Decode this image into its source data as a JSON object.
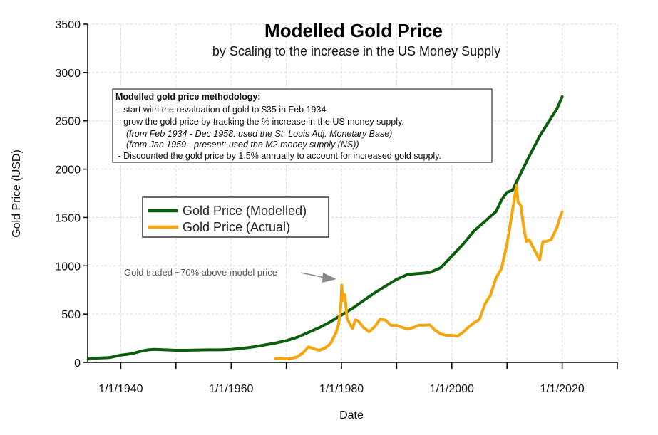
{
  "chart_data": {
    "type": "line",
    "title": "Modelled Gold Price",
    "subtitle": "by Scaling to the increase in the US Money Supply",
    "xlabel": "Date",
    "ylabel": "Gold Price (USD)",
    "xlim": [
      1934,
      2030
    ],
    "ylim": [
      0,
      3500
    ],
    "x_ticks": [
      1940,
      1960,
      1980,
      2000,
      2020
    ],
    "x_tick_labels": [
      "1/1/1940",
      "1/1/1960",
      "1/1/1980",
      "1/1/2000",
      "1/1/2020"
    ],
    "y_ticks": [
      0,
      500,
      1000,
      1500,
      2000,
      2500,
      3000,
      3500
    ],
    "y_tick_labels": [
      "0",
      "500",
      "1000",
      "1500",
      "2000",
      "2500",
      "3000",
      "3500"
    ],
    "grid": true,
    "legend_position": "center-left",
    "series": [
      {
        "name": "Gold Price (Modelled)",
        "color": "#0b5e0b",
        "x": [
          1934.1,
          1936,
          1938,
          1940,
          1942,
          1944,
          1945,
          1946,
          1948,
          1950,
          1952,
          1954,
          1956,
          1958,
          1960,
          1962,
          1964,
          1966,
          1968,
          1970,
          1972,
          1974,
          1976,
          1978,
          1980,
          1982,
          1984,
          1986,
          1988,
          1990,
          1992,
          1994,
          1996,
          1998,
          2000,
          2002,
          2004,
          2006,
          2008,
          2009,
          2010,
          2011,
          2012,
          2014,
          2016,
          2018,
          2019,
          2020
        ],
        "y": [
          35,
          45,
          50,
          75,
          90,
          120,
          130,
          135,
          130,
          125,
          125,
          128,
          130,
          130,
          135,
          145,
          160,
          180,
          200,
          225,
          260,
          310,
          360,
          420,
          490,
          560,
          640,
          720,
          790,
          860,
          910,
          920,
          930,
          980,
          1100,
          1220,
          1360,
          1460,
          1560,
          1680,
          1760,
          1780,
          1900,
          2130,
          2350,
          2530,
          2620,
          2750
        ]
      },
      {
        "name": "Gold Price (Actual)",
        "color": "#f5a50d",
        "x": [
          1968,
          1969,
          1970,
          1971,
          1972,
          1973,
          1974,
          1975,
          1976,
          1977,
          1978,
          1979,
          1979.5,
          1979.9,
          1980.05,
          1980.3,
          1980.6,
          1981,
          1981.5,
          1982,
          1982.5,
          1983,
          1984,
          1985,
          1986,
          1987,
          1988,
          1989,
          1990,
          1991,
          1992,
          1993,
          1994,
          1995,
          1996,
          1997,
          1998,
          1999,
          2000,
          2001,
          2002,
          2003,
          2004,
          2005,
          2006,
          2007,
          2008,
          2009,
          2010,
          2011,
          2011.7,
          2012,
          2012.5,
          2013,
          2013.5,
          2014,
          2015,
          2015.9,
          2016.5,
          2017,
          2018,
          2019,
          2019.5,
          2020
        ],
        "y": [
          40,
          42,
          36,
          41,
          58,
          97,
          160,
          140,
          125,
          148,
          193,
          307,
          400,
          600,
          800,
          640,
          700,
          460,
          400,
          350,
          440,
          430,
          360,
          317,
          368,
          447,
          437,
          381,
          383,
          362,
          344,
          360,
          384,
          384,
          388,
          331,
          294,
          279,
          280,
          271,
          310,
          363,
          410,
          445,
          604,
          695,
          872,
          972,
          1225,
          1570,
          1830,
          1660,
          1620,
          1410,
          1250,
          1270,
          1160,
          1060,
          1250,
          1250,
          1270,
          1390,
          1480,
          1560
        ]
      }
    ],
    "annotations": [
      {
        "text": "Gold traded ~70% above model price"
      }
    ],
    "methodology_box": {
      "heading": "Modelled gold price methodology:",
      "lines": [
        " - start with the revaluation of gold to $35 in Feb 1934",
        " - grow the gold price by tracking the % increase in the US money supply.",
        "(from Feb 1934 - Dec 1958: used the St. Louis Adj. Monetary Base)",
        "(from Jan 1959 - present: used the M2 money supply (NS))",
        " - Discounted the gold price by 1.5% annually to account for increased gold supply."
      ]
    }
  }
}
